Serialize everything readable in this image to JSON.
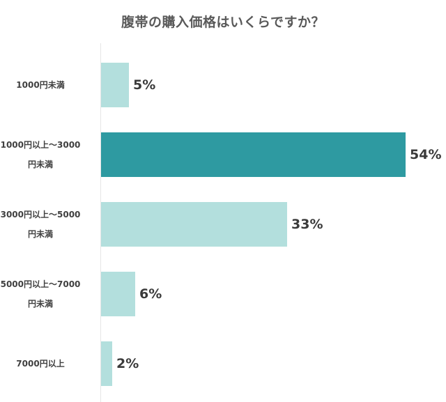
{
  "chart_data": {
    "type": "bar",
    "orientation": "horizontal",
    "title": "腹帯の購入価格はいくらですか？",
    "categories": [
      "1000円未満",
      "1000円以上～3000円未満",
      "3000円以上～5000円未満",
      "5000円以上～7000円未満",
      "7000円以上"
    ],
    "values": [
      5,
      54,
      33,
      6,
      2
    ],
    "value_labels": [
      "5%",
      "54%",
      "33%",
      "6%",
      "2%"
    ],
    "unit": "%",
    "xlabel": "",
    "ylabel": "",
    "grid": false,
    "legend": "none",
    "highlight_index": 1,
    "colors": {
      "default": "#b3dfdd",
      "highlight": "#2e9aa1"
    }
  },
  "rows": [
    {
      "label_lines": [
        "1000円未満"
      ],
      "value_label": "5%"
    },
    {
      "label_lines": [
        "1000円以上～3000",
        "円未満"
      ],
      "value_label": "54%"
    },
    {
      "label_lines": [
        "3000円以上～5000",
        "円未満"
      ],
      "value_label": "33%"
    },
    {
      "label_lines": [
        "5000円以上～7000",
        "円未満"
      ],
      "value_label": "6%"
    },
    {
      "label_lines": [
        "7000円以上"
      ],
      "value_label": "2%"
    }
  ]
}
